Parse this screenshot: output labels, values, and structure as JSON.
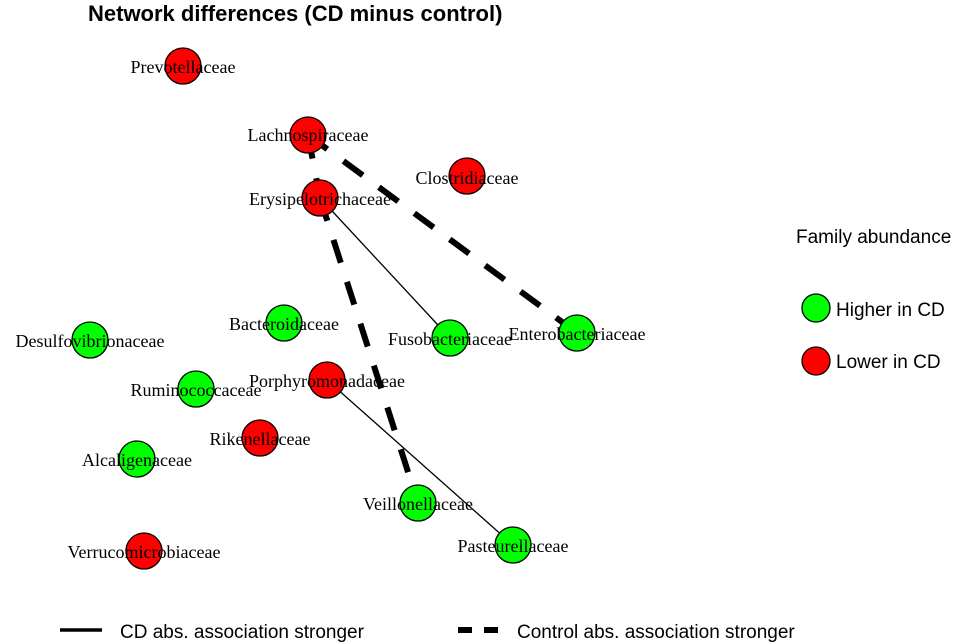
{
  "title": "Network differences (CD minus control)",
  "colors": {
    "higher": "#00ff00",
    "lower": "#ff0000"
  },
  "nodes": [
    {
      "id": "prevotellaceae",
      "label": "Prevotellaceae",
      "group": "lower"
    },
    {
      "id": "lachnospiraceae",
      "label": "Lachnospiraceae",
      "group": "lower"
    },
    {
      "id": "clostridiaceae",
      "label": "Clostridiaceae",
      "group": "lower"
    },
    {
      "id": "erysipelotrichaceae",
      "label": "Erysipelotrichaceae",
      "group": "lower"
    },
    {
      "id": "bacteroidaceae",
      "label": "Bacteroidaceae",
      "group": "higher"
    },
    {
      "id": "desulfovibrionaceae",
      "label": "Desulfovibrionaceae",
      "group": "higher"
    },
    {
      "id": "fusobacteriaceae",
      "label": "Fusobacteriaceae",
      "group": "higher"
    },
    {
      "id": "enterobacteriaceae",
      "label": "Enterobacteriaceae",
      "group": "higher"
    },
    {
      "id": "porphyromonadaceae",
      "label": "Porphyromonadaceae",
      "group": "lower"
    },
    {
      "id": "ruminococcaceae",
      "label": "Ruminococcaceae",
      "group": "higher"
    },
    {
      "id": "rikenellaceae",
      "label": "Rikenellaceae",
      "group": "lower"
    },
    {
      "id": "alcaligenaceae",
      "label": "Alcaligenaceae",
      "group": "higher"
    },
    {
      "id": "veillonellaceae",
      "label": "Veillonellaceae",
      "group": "higher"
    },
    {
      "id": "pasteurellaceae",
      "label": "Pasteurellaceae",
      "group": "higher"
    },
    {
      "id": "verrucomicrobiaceae",
      "label": "Verrucomicrobiaceae",
      "group": "lower"
    }
  ],
  "edges": [
    {
      "source": "lachnospiraceae",
      "target": "erysipelotrichaceae",
      "type": "control"
    },
    {
      "source": "lachnospiraceae",
      "target": "enterobacteriaceae",
      "type": "control"
    },
    {
      "source": "erysipelotrichaceae",
      "target": "veillonellaceae",
      "type": "control"
    },
    {
      "source": "erysipelotrichaceae",
      "target": "fusobacteriaceae",
      "type": "cd"
    },
    {
      "source": "porphyromonadaceae",
      "target": "pasteurellaceae",
      "type": "cd"
    }
  ],
  "legend": {
    "title": "Family abundance",
    "higher_label": "Higher in CD",
    "lower_label": "Lower in CD"
  },
  "line_legend": {
    "cd_label": "CD abs. association stronger",
    "control_label": "Control abs. association stronger"
  }
}
